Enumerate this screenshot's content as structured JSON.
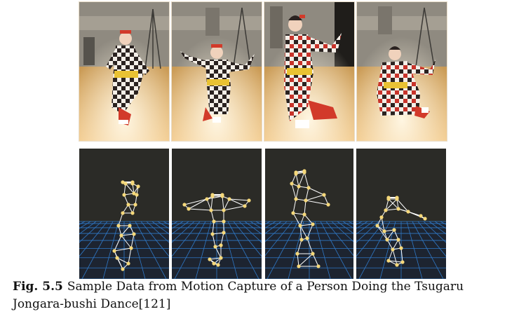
{
  "figure": {
    "label": "Fig. 5.5",
    "caption_line_1": "Sample Data from Motion Capture of a Person Doing the Tsugaru",
    "caption_line_2": "Jongara-bushi Dance[121]"
  },
  "colors": {
    "floor": "#d9a256",
    "wall": "#8f8a80",
    "kimono_red": "#d23a2a",
    "kimono_dark": "#2a2220",
    "obi": "#e9c233",
    "mocap_bg": "#2b2b27",
    "grid": "#2f78c6",
    "marker": "#f5d87a",
    "bone": "#ffffff"
  },
  "photos": [
    {
      "pose": "dancer-pose-1"
    },
    {
      "pose": "dancer-pose-2"
    },
    {
      "pose": "dancer-pose-3"
    },
    {
      "pose": "dancer-pose-4"
    }
  ],
  "skeletons": [
    {
      "pose": "skeleton-pose-1"
    },
    {
      "pose": "skeleton-pose-2"
    },
    {
      "pose": "skeleton-pose-3"
    },
    {
      "pose": "skeleton-pose-4"
    }
  ]
}
